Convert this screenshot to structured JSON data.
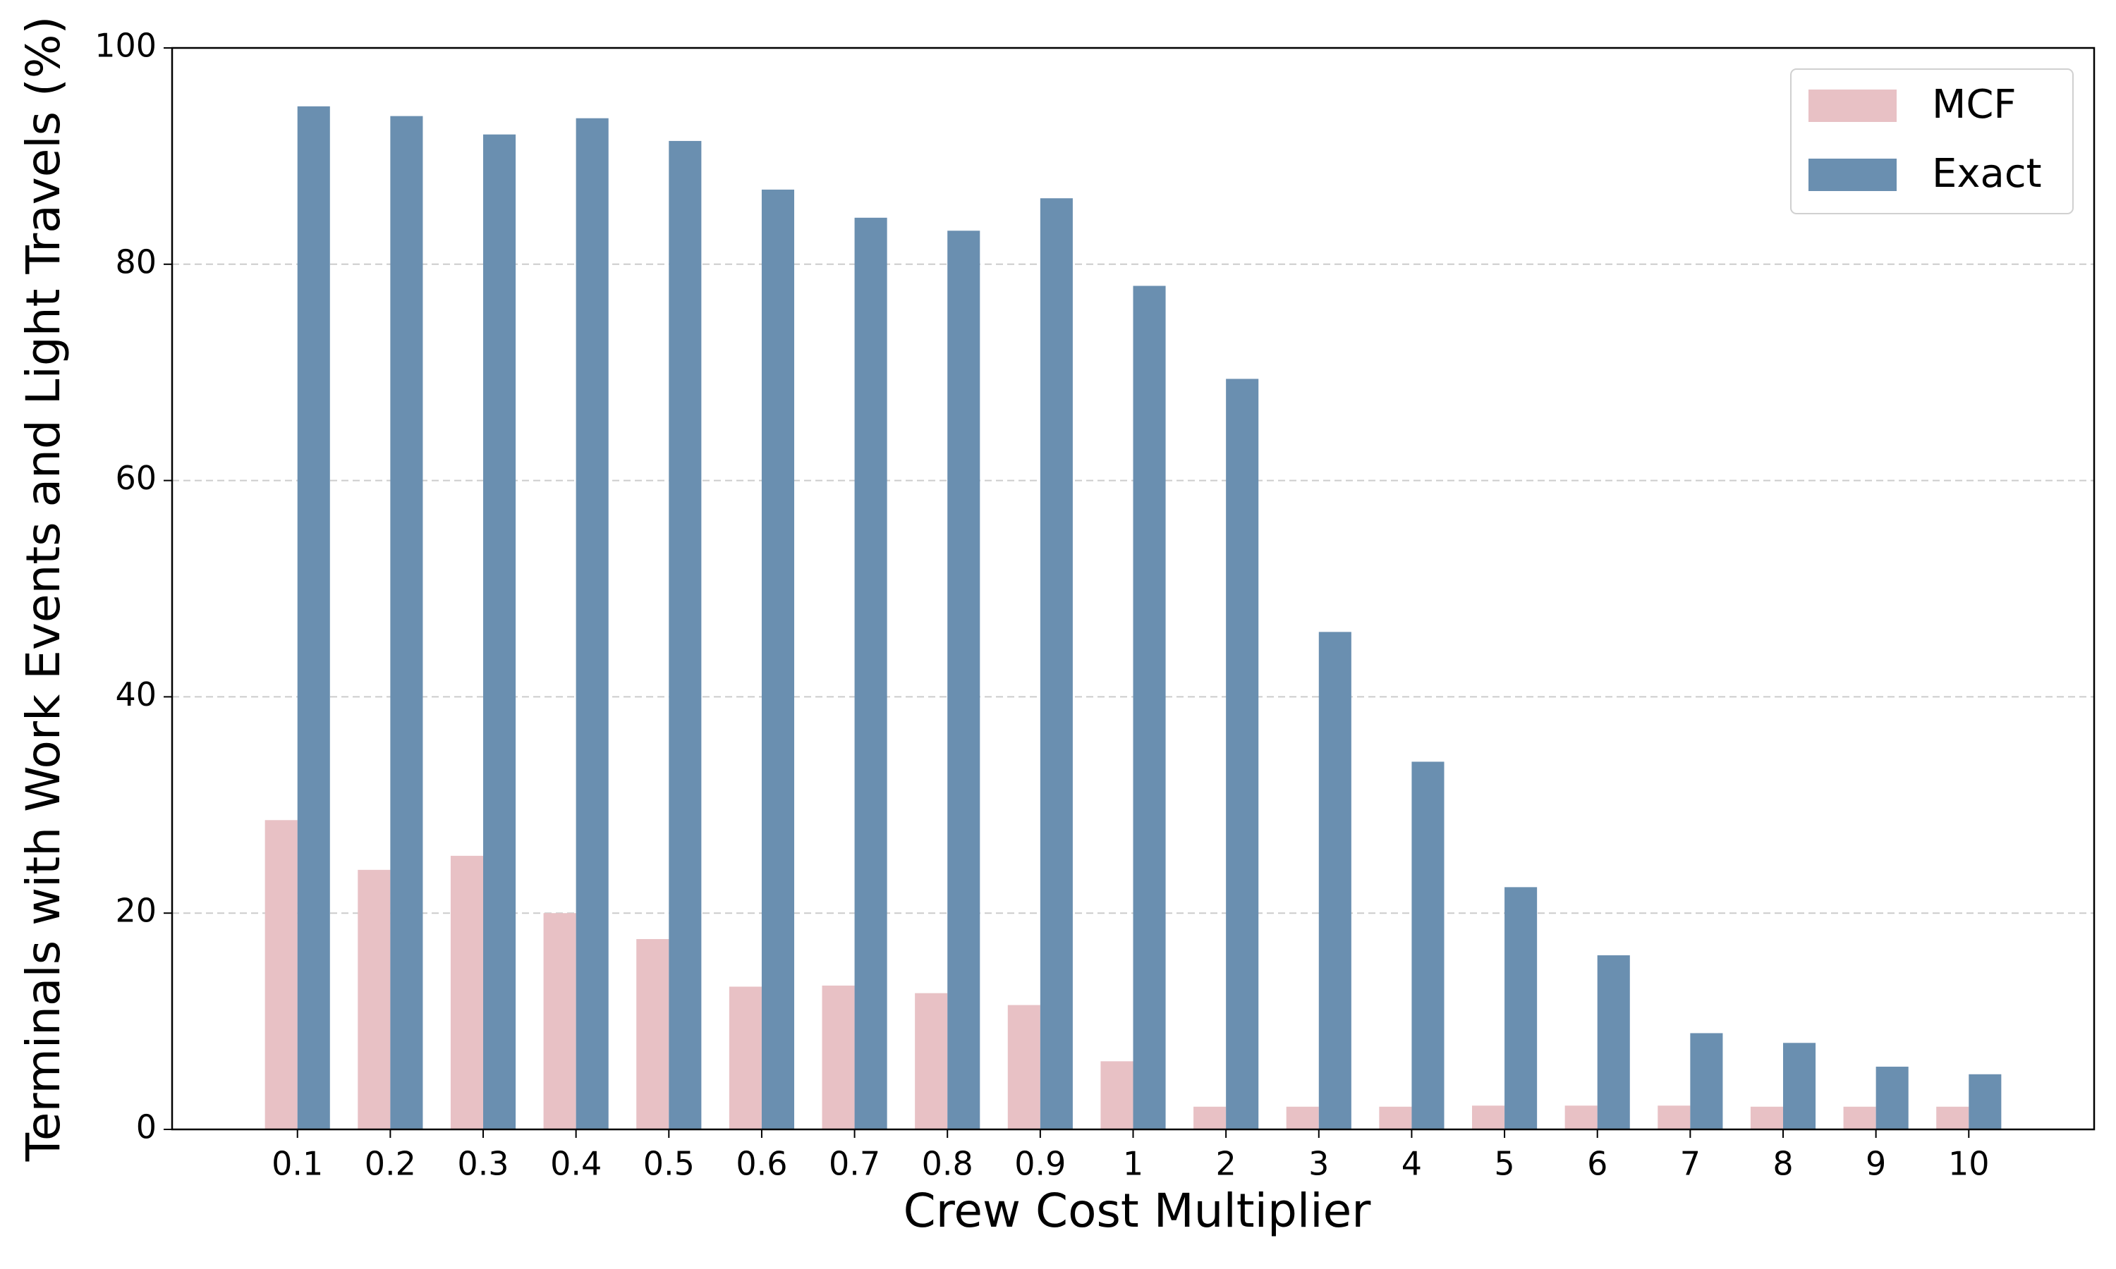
{
  "chart_data": {
    "type": "bar",
    "x_label": "Crew Cost Multiplier",
    "y_label": "Terminals with Work Events and Light Travels (%)",
    "categories": [
      "0.1",
      "0.2",
      "0.3",
      "0.4",
      "0.5",
      "0.6",
      "0.7",
      "0.8",
      "0.9",
      "1",
      "2",
      "3",
      "4",
      "5",
      "6",
      "7",
      "8",
      "9",
      "10"
    ],
    "series": [
      {
        "name": "MCF",
        "color": "#e8c1c5",
        "values": [
          28.6,
          24,
          25.3,
          20,
          17.6,
          13.2,
          13.3,
          12.6,
          11.5,
          6.3,
          2.1,
          2.1,
          2.1,
          2.2,
          2.2,
          2.2,
          2.1,
          2.1,
          2.1
        ]
      },
      {
        "name": "Exact",
        "color": "#6a8fb0",
        "values": [
          94.6,
          93.7,
          92,
          93.5,
          91.4,
          86.9,
          84.3,
          83.1,
          86.1,
          78,
          69.4,
          46,
          34,
          22.4,
          16.1,
          8.9,
          8,
          5.8,
          5.1
        ]
      }
    ],
    "ylim": [
      0,
      100
    ],
    "yticks": [
      0,
      20,
      40,
      60,
      80,
      100
    ],
    "grid": true,
    "legend": "upper right"
  }
}
